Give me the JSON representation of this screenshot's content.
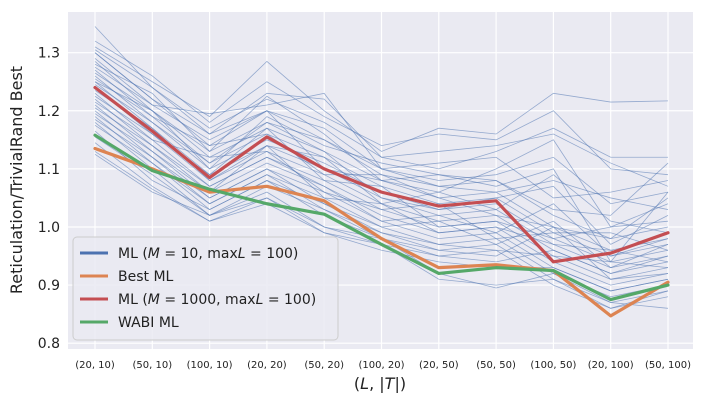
{
  "chart_data": {
    "type": "line",
    "categories": [
      "(20, 10)",
      "(50, 10)",
      "(100, 10)",
      "(20, 20)",
      "(50, 20)",
      "(100, 20)",
      "(20, 50)",
      "(50, 50)",
      "(100, 50)",
      "(20, 100)",
      "(50, 100)"
    ],
    "xlabel": "(L, |T|)",
    "ylabel": "Reticulation/TrivialRand Best",
    "ylim": [
      0.79,
      1.37
    ],
    "yticks": [
      0.8,
      0.9,
      1.0,
      1.1,
      1.2,
      1.3
    ],
    "ytick_labels": [
      "0.8",
      "0.9",
      "1.0",
      "1.1",
      "1.2",
      "1.3"
    ],
    "grid": true,
    "legend_position": "bottom-left",
    "series": [
      {
        "name": "ML (M = 10, maxL = 100)",
        "color": "#4c72b0",
        "values": [
          1.24,
          1.16,
          1.09,
          1.15,
          1.1,
          1.06,
          1.03,
          1.04,
          0.98,
          0.95,
          0.97
        ]
      },
      {
        "name": "Best ML",
        "color": "#dd8452",
        "values": [
          1.135,
          1.1,
          1.06,
          1.07,
          1.045,
          0.98,
          0.93,
          0.935,
          0.925,
          0.847,
          0.905
        ]
      },
      {
        "name": "ML (M = 1000, maxL = 100)",
        "color": "#c44e52",
        "values": [
          1.24,
          1.165,
          1.085,
          1.155,
          1.1,
          1.06,
          1.036,
          1.045,
          0.94,
          0.955,
          0.99
        ]
      },
      {
        "name": "WABI ML",
        "color": "#55a868",
        "values": [
          1.158,
          1.097,
          1.065,
          1.04,
          1.022,
          0.97,
          0.92,
          0.93,
          0.925,
          0.875,
          0.9
        ]
      }
    ],
    "spaghetti_series": [
      [
        1.3,
        1.22,
        1.14,
        1.2,
        1.15,
        1.1,
        1.07,
        1.08,
        1.02,
        0.98,
        1.0
      ],
      [
        1.285,
        1.2,
        1.12,
        1.17,
        1.13,
        1.08,
        1.05,
        1.06,
        1.0,
        0.96,
        0.98
      ],
      [
        1.27,
        1.19,
        1.11,
        1.16,
        1.12,
        1.07,
        1.04,
        1.05,
        0.99,
        0.95,
        0.97
      ],
      [
        1.26,
        1.18,
        1.1,
        1.15,
        1.11,
        1.06,
        1.03,
        1.04,
        0.98,
        0.94,
        0.96
      ],
      [
        1.25,
        1.17,
        1.09,
        1.14,
        1.1,
        1.05,
        1.02,
        1.03,
        0.97,
        0.93,
        0.95
      ],
      [
        1.24,
        1.16,
        1.08,
        1.13,
        1.09,
        1.04,
        1.01,
        1.02,
        0.96,
        0.92,
        0.94
      ],
      [
        1.23,
        1.15,
        1.07,
        1.12,
        1.08,
        1.03,
        1.0,
        1.01,
        0.95,
        0.91,
        0.93
      ],
      [
        1.22,
        1.14,
        1.06,
        1.11,
        1.07,
        1.02,
        0.99,
        1.0,
        0.94,
        0.9,
        0.92
      ],
      [
        1.21,
        1.13,
        1.05,
        1.1,
        1.06,
        1.01,
        0.98,
        0.99,
        0.93,
        0.89,
        0.91
      ],
      [
        1.2,
        1.12,
        1.04,
        1.09,
        1.05,
        1.0,
        0.97,
        0.98,
        0.92,
        0.88,
        0.9
      ],
      [
        1.19,
        1.11,
        1.03,
        1.08,
        1.04,
        0.99,
        0.96,
        0.97,
        0.91,
        0.87,
        0.89
      ],
      [
        1.18,
        1.1,
        1.02,
        1.07,
        1.03,
        0.98,
        0.95,
        0.96,
        0.9,
        0.86,
        0.88
      ],
      [
        1.345,
        1.24,
        1.16,
        1.2,
        1.1,
        1.08,
        1.09,
        1.07,
        1.1,
        0.94,
        1.06
      ],
      [
        1.31,
        1.25,
        1.19,
        1.285,
        1.2,
        1.13,
        1.17,
        1.16,
        1.23,
        1.215,
        1.217
      ],
      [
        1.3,
        1.22,
        1.16,
        1.23,
        1.22,
        1.12,
        1.1,
        1.13,
        1.17,
        1.12,
        1.12
      ],
      [
        1.29,
        1.21,
        1.195,
        1.21,
        1.23,
        1.1,
        1.11,
        1.12,
        1.05,
        1.06,
        1.08
      ],
      [
        1.28,
        1.23,
        1.13,
        1.225,
        1.16,
        1.08,
        1.06,
        1.1,
        1.15,
        1.0,
        1.04
      ],
      [
        1.265,
        1.2,
        1.1,
        1.19,
        1.14,
        1.11,
        1.09,
        1.08,
        1.03,
        1.02,
        1.11
      ],
      [
        1.255,
        1.19,
        1.14,
        1.16,
        1.09,
        1.09,
        1.05,
        1.02,
        1.0,
        0.98,
        1.05
      ],
      [
        1.245,
        1.18,
        1.11,
        1.18,
        1.13,
        1.05,
        1.03,
        1.05,
        1.07,
        0.97,
        1.02
      ],
      [
        1.235,
        1.17,
        1.08,
        1.14,
        1.12,
        1.04,
        1.06,
        1.03,
        1.09,
        1.01,
        0.99
      ],
      [
        1.225,
        1.16,
        1.09,
        1.17,
        1.08,
        1.07,
        1.0,
        1.01,
        0.98,
        1.0,
        1.01
      ],
      [
        1.215,
        1.15,
        1.12,
        1.13,
        1.06,
        1.03,
        1.04,
        0.98,
        0.99,
        0.99,
        0.96
      ],
      [
        1.205,
        1.14,
        1.07,
        1.12,
        1.07,
        1.01,
        1.02,
        0.99,
        1.04,
        0.95,
        0.98
      ],
      [
        1.195,
        1.13,
        1.06,
        1.14,
        1.05,
        1.04,
        0.99,
        1.0,
        0.97,
        0.96,
        0.94
      ],
      [
        1.185,
        1.12,
        1.05,
        1.1,
        1.04,
        1.0,
        1.01,
        0.97,
        1.01,
        0.93,
        0.97
      ],
      [
        1.175,
        1.11,
        1.04,
        1.09,
        1.03,
        0.99,
        0.97,
        0.96,
        0.95,
        0.94,
        0.93
      ],
      [
        1.165,
        1.08,
        1.03,
        1.08,
        1.02,
        0.98,
        0.96,
        0.95,
        1.0,
        0.91,
        0.92
      ],
      [
        1.155,
        1.09,
        1.02,
        1.06,
        1.0,
        0.97,
        0.95,
        0.94,
        0.96,
        0.92,
        0.95
      ],
      [
        1.145,
        1.07,
        1.01,
        1.05,
        0.99,
        0.96,
        0.94,
        0.93,
        0.93,
        0.89,
        0.91
      ],
      [
        1.13,
        1.065,
        1.01,
        1.04,
        0.99,
        0.97,
        0.91,
        0.9,
        0.91,
        0.86,
        0.89
      ],
      [
        1.125,
        1.06,
        1.02,
        1.05,
        1.0,
        0.98,
        0.92,
        0.895,
        0.92,
        0.87,
        0.86
      ],
      [
        1.32,
        1.26,
        1.18,
        1.25,
        1.19,
        1.14,
        1.16,
        1.15,
        1.2,
        1.1,
        1.09
      ],
      [
        1.305,
        1.24,
        1.17,
        1.22,
        1.18,
        1.12,
        1.13,
        1.14,
        1.16,
        1.11,
        1.07
      ],
      [
        1.275,
        1.21,
        1.15,
        1.2,
        1.17,
        1.1,
        1.08,
        1.09,
        1.12,
        1.04,
        1.06
      ],
      [
        1.25,
        1.2,
        1.13,
        1.18,
        1.15,
        1.09,
        1.07,
        1.06,
        1.08,
        1.05,
        1.03
      ]
    ]
  },
  "legend": {
    "items": [
      {
        "pre": "ML (",
        "var1": "M",
        "mid": " = 10, max",
        "var2": "L",
        "post": " = 100)"
      },
      {
        "pre": "Best ML",
        "var1": "",
        "mid": "",
        "var2": "",
        "post": ""
      },
      {
        "pre": "ML (",
        "var1": "M",
        "mid": " = 1000, max",
        "var2": "L",
        "post": " = 100)"
      },
      {
        "pre": "WABI ML",
        "var1": "",
        "mid": "",
        "var2": "",
        "post": ""
      }
    ]
  },
  "xlabel_parts": {
    "open": "(",
    "var1": "L",
    "sep": ", |",
    "var2": "T",
    "close": "|)"
  }
}
